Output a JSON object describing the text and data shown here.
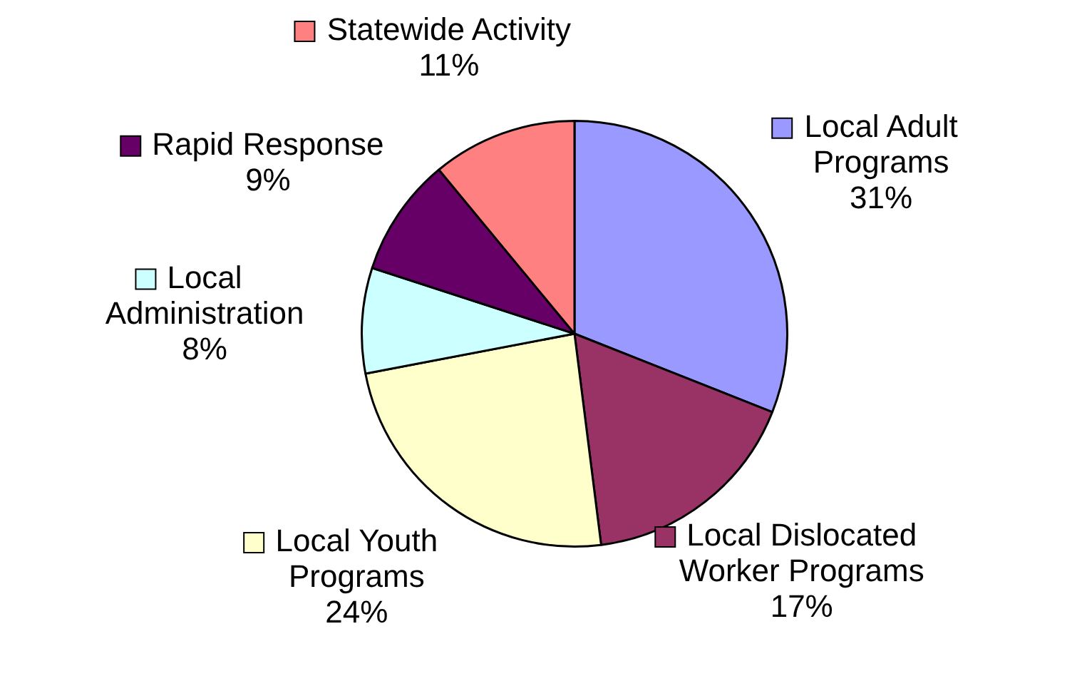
{
  "chart_data": {
    "type": "pie",
    "categories": [
      "Local Adult Programs",
      "Local Dislocated Worker Programs",
      "Local Youth Programs",
      "Local Administration",
      "Rapid Response",
      "Statewide Activity"
    ],
    "values": [
      31,
      17,
      24,
      8,
      9,
      11
    ],
    "colors": [
      "#9999ff",
      "#993366",
      "#ffffcc",
      "#ccffff",
      "#660066",
      "#ff8080"
    ],
    "value_labels": [
      "31%",
      "17%",
      "24%",
      "8%",
      "9%",
      "11%"
    ],
    "legend": "top left"
  }
}
